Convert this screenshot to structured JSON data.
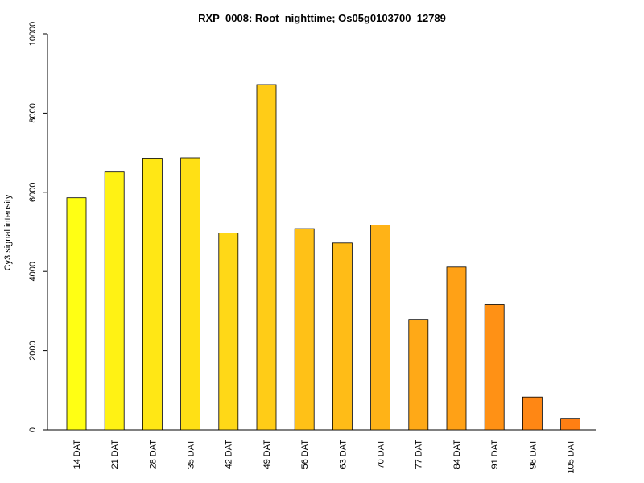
{
  "chart_data": {
    "type": "bar",
    "title": "RXP_0008: Root_nighttime; Os05g0103700_12789",
    "xlabel": "",
    "ylabel": "Cy3 signal intensity",
    "ylim": [
      0,
      10000
    ],
    "yticks": [
      0,
      2000,
      4000,
      6000,
      8000,
      10000
    ],
    "ytick_labels": [
      "0",
      "2000",
      "4000",
      "6000",
      "8000",
      "10000"
    ],
    "grid": false,
    "legend": "none",
    "categories": [
      "14 DAT",
      "21 DAT",
      "28 DAT",
      "35 DAT",
      "42 DAT",
      "49 DAT",
      "56 DAT",
      "63 DAT",
      "70 DAT",
      "77 DAT",
      "84 DAT",
      "91 DAT",
      "98 DAT",
      "105 DAT"
    ],
    "values": [
      5860,
      6510,
      6860,
      6870,
      4970,
      8720,
      5080,
      4720,
      5170,
      2790,
      4110,
      3160,
      830,
      290
    ],
    "colors": [
      "#FFFF14",
      "#FFF214",
      "#FFE715",
      "#FFE015",
      "#FFD817",
      "#FFCC17",
      "#FFC117",
      "#FFBC17",
      "#FFB317",
      "#FFA917",
      "#FFA116",
      "#FF9115",
      "#FF8714",
      "#FF7F13"
    ]
  }
}
